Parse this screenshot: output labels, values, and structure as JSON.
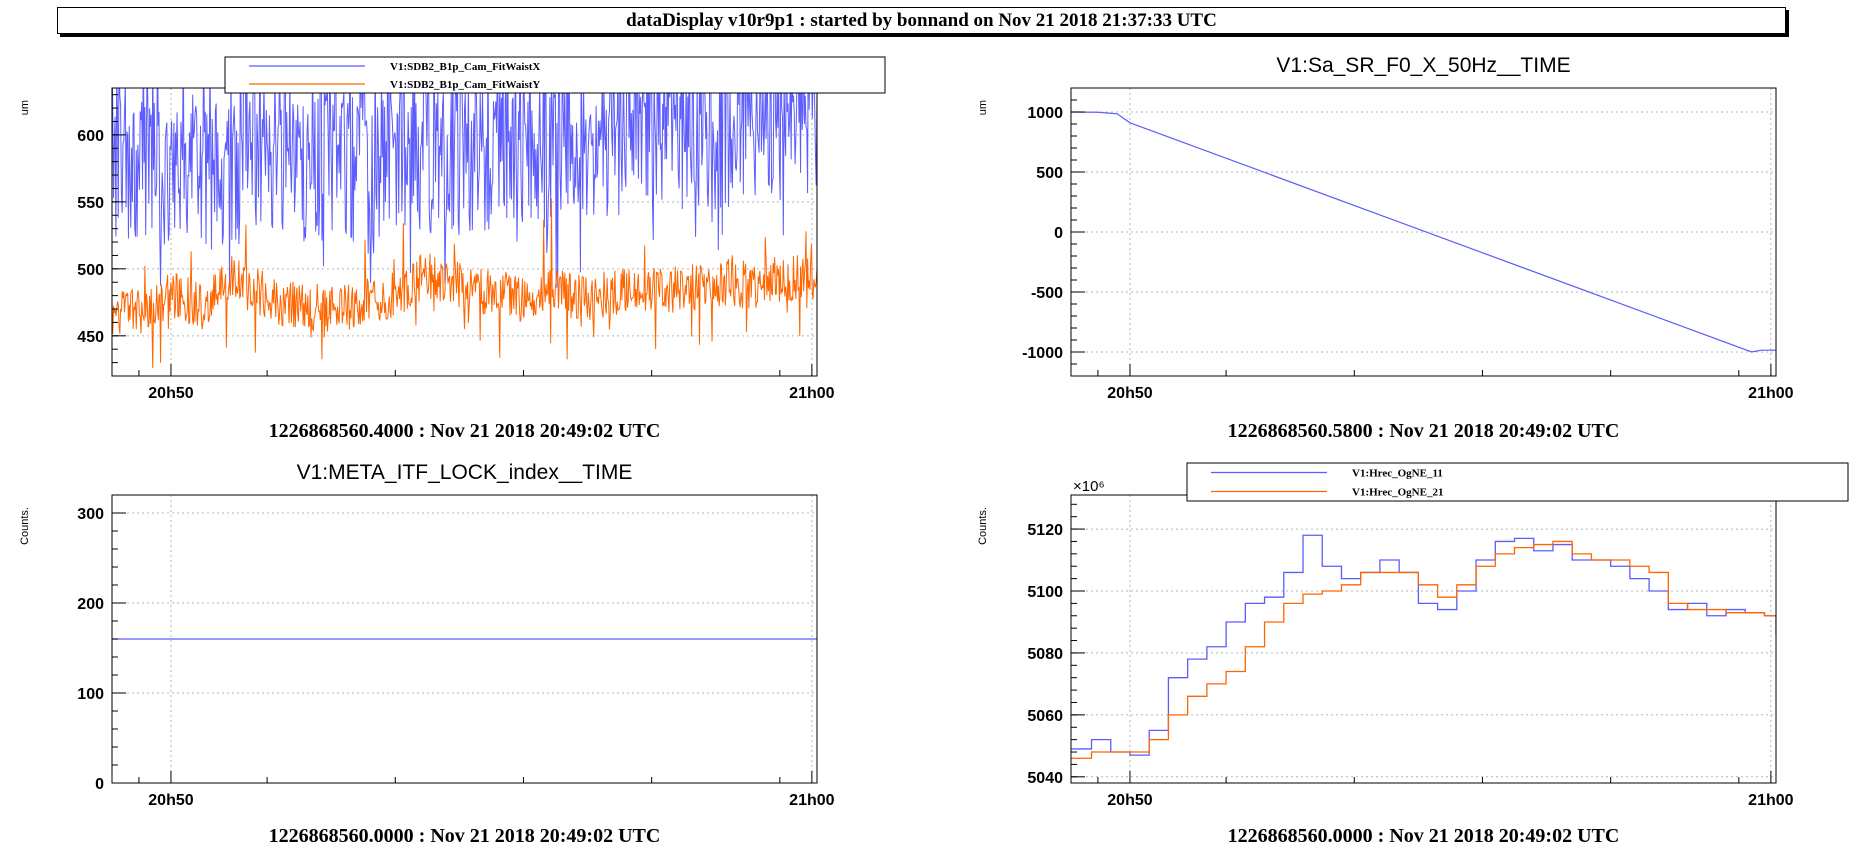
{
  "banner": "dataDisplay v10r9p1 : started by bonnand on Nov 21 2018 21:37:33 UTC",
  "colors": {
    "blue": "#5c5cff",
    "orange": "#ff6600",
    "grid": "#b5b5b5",
    "axis": "#000000"
  },
  "chart_data": [
    {
      "type": "line",
      "title": "",
      "ylabel": "um",
      "caption": "1226868560.4000 : Nov 21 2018 20:49:02 UTC",
      "ylim": [
        420,
        635
      ],
      "xlim": [
        -0.92,
        10.08
      ],
      "xticks": [
        {
          "value": 0,
          "label": "20h50"
        },
        {
          "value": 10,
          "label": "21h00"
        }
      ],
      "yticks": [
        450,
        500,
        550,
        600
      ],
      "grid": true,
      "legend_position": "top-left",
      "series": [
        {
          "name": "V1:SDB2_B1p_Cam_FitWaistX",
          "color": "blue",
          "x": [
            -0.92,
            -0.5,
            0,
            0.5,
            1,
            1.5,
            2,
            2.5,
            3,
            3.5,
            4,
            4.5,
            5,
            5.5,
            6,
            6.5,
            7,
            7.5,
            8,
            8.5,
            9,
            9.5,
            10.08
          ],
          "y": [
            575,
            570,
            572,
            565,
            574,
            568,
            575,
            578,
            573,
            580,
            582,
            576,
            585,
            588,
            584,
            592,
            590,
            594,
            596,
            598,
            600,
            605,
            610
          ]
        },
        {
          "name": "V1:SDB2_B1p_Cam_FitWaistY",
          "color": "orange",
          "x": [
            -0.92,
            -0.5,
            0,
            0.5,
            1,
            1.5,
            2,
            2.5,
            3,
            3.5,
            4,
            4.5,
            5,
            5.5,
            6,
            6.5,
            7,
            7.5,
            8,
            8.5,
            9,
            9.5,
            10.08
          ],
          "y": [
            465,
            468,
            480,
            472,
            495,
            478,
            472,
            470,
            474,
            480,
            496,
            488,
            482,
            478,
            482,
            476,
            484,
            486,
            484,
            490,
            488,
            492,
            494
          ]
        }
      ]
    },
    {
      "type": "line",
      "title": "V1:Sa_SR_F0_X_50Hz__TIME",
      "ylabel": "um",
      "caption": "1226868560.5800 : Nov 21 2018 20:49:02 UTC",
      "ylim": [
        -1200,
        1200
      ],
      "xlim": [
        -0.92,
        10.08
      ],
      "xticks": [
        {
          "value": 0,
          "label": "20h50"
        },
        {
          "value": 10,
          "label": "21h00"
        }
      ],
      "yticks": [
        -1000,
        -500,
        0,
        500,
        1000
      ],
      "grid": true,
      "series": [
        {
          "name": "",
          "color": "blue",
          "x": [
            -0.92,
            -0.5,
            -0.2,
            0,
            9.7,
            9.85,
            10.08
          ],
          "y": [
            1000,
            998,
            985,
            910,
            -1000,
            -985,
            -985
          ]
        }
      ]
    },
    {
      "type": "line",
      "title": "V1:META_ITF_LOCK_index__TIME",
      "ylabel": "Counts.",
      "caption": "1226868560.0000 : Nov 21 2018 20:49:02 UTC",
      "ylim": [
        0,
        320
      ],
      "xlim": [
        -0.92,
        10.08
      ],
      "xticks": [
        {
          "value": 0,
          "label": "20h50"
        },
        {
          "value": 10,
          "label": "21h00"
        }
      ],
      "yticks": [
        0,
        100,
        200,
        300
      ],
      "grid": true,
      "series": [
        {
          "name": "",
          "color": "blue",
          "x": [
            -0.92,
            10.08
          ],
          "y": [
            160,
            160
          ]
        }
      ]
    },
    {
      "type": "line",
      "title": "",
      "ylabel": "Counts.",
      "caption": "1226868560.0000 : Nov 21 2018 20:49:02 UTC",
      "exponent": "×10⁶",
      "ylim": [
        5038,
        5131
      ],
      "xlim": [
        -0.92,
        10.08
      ],
      "xticks": [
        {
          "value": 0,
          "label": "20h50"
        },
        {
          "value": 10,
          "label": "21h00"
        }
      ],
      "yticks": [
        5040,
        5060,
        5080,
        5100,
        5120
      ],
      "grid": true,
      "legend_position": "top-right",
      "series": [
        {
          "name": "V1:Hrec_OgNE_11",
          "color": "blue",
          "x": [
            -0.92,
            -0.6,
            -0.3,
            0,
            0.3,
            0.6,
            0.9,
            1.2,
            1.5,
            1.8,
            2.1,
            2.4,
            2.7,
            3.0,
            3.3,
            3.6,
            3.9,
            4.2,
            4.5,
            4.8,
            5.1,
            5.4,
            5.7,
            6.0,
            6.3,
            6.6,
            6.9,
            7.2,
            7.5,
            7.8,
            8.1,
            8.4,
            8.7,
            9.0,
            9.3,
            9.6,
            9.9,
            10.08
          ],
          "y": [
            5049,
            5052,
            5048,
            5047,
            5055,
            5072,
            5078,
            5082,
            5090,
            5096,
            5098,
            5106,
            5118,
            5108,
            5104,
            5106,
            5110,
            5106,
            5096,
            5094,
            5100,
            5110,
            5116,
            5117,
            5113,
            5115,
            5110,
            5110,
            5108,
            5104,
            5100,
            5094,
            5096,
            5092,
            5094,
            5093,
            5092,
            5086
          ]
        },
        {
          "name": "V1:Hrec_OgNE_21",
          "color": "orange",
          "x": [
            -0.92,
            -0.6,
            -0.3,
            0,
            0.3,
            0.6,
            0.9,
            1.2,
            1.5,
            1.8,
            2.1,
            2.4,
            2.7,
            3.0,
            3.3,
            3.6,
            3.9,
            4.2,
            4.5,
            4.8,
            5.1,
            5.4,
            5.7,
            6.0,
            6.3,
            6.6,
            6.9,
            7.2,
            7.5,
            7.8,
            8.1,
            8.4,
            8.7,
            9.0,
            9.3,
            9.6,
            9.9,
            10.08
          ],
          "y": [
            5046,
            5048,
            5048,
            5048,
            5052,
            5060,
            5066,
            5070,
            5074,
            5082,
            5090,
            5096,
            5099,
            5100,
            5102,
            5106,
            5106,
            5106,
            5102,
            5098,
            5102,
            5108,
            5112,
            5114,
            5115,
            5116,
            5112,
            5110,
            5110,
            5108,
            5106,
            5096,
            5094,
            5094,
            5093,
            5093,
            5092,
            5092
          ]
        }
      ]
    }
  ]
}
